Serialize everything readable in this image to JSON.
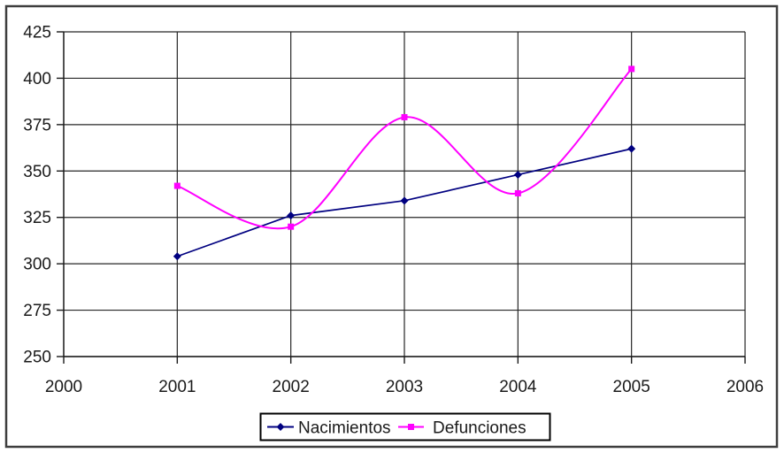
{
  "chart_data": {
    "type": "line",
    "x": [
      2001,
      2002,
      2003,
      2004,
      2005
    ],
    "series": [
      {
        "name": "Nacimientos",
        "values": [
          304,
          326,
          334,
          348,
          362
        ],
        "color": "#000080",
        "marker": "diamond",
        "smooth": false
      },
      {
        "name": "Defunciones",
        "values": [
          342,
          320,
          379,
          338,
          405
        ],
        "color": "#FF00FF",
        "marker": "square",
        "smooth": true
      }
    ],
    "title": "",
    "xlabel": "",
    "ylabel": "",
    "xlim": [
      2000,
      2006
    ],
    "ylim": [
      250,
      425
    ],
    "x_ticks": [
      2000,
      2001,
      2002,
      2003,
      2004,
      2005,
      2006
    ],
    "y_ticks": [
      250,
      275,
      300,
      325,
      350,
      375,
      400,
      425
    ],
    "grid": true,
    "legend_position": "bottom",
    "legend_labels": [
      "Nacimientos",
      "Defunciones"
    ]
  },
  "style": {
    "frame_color": "#3E3E3E",
    "grid_color": "#262626",
    "axis_color": "#1a1a1a",
    "text_color": "#1a1a1a",
    "legend_border_color": "#000000",
    "background": "#ffffff"
  }
}
